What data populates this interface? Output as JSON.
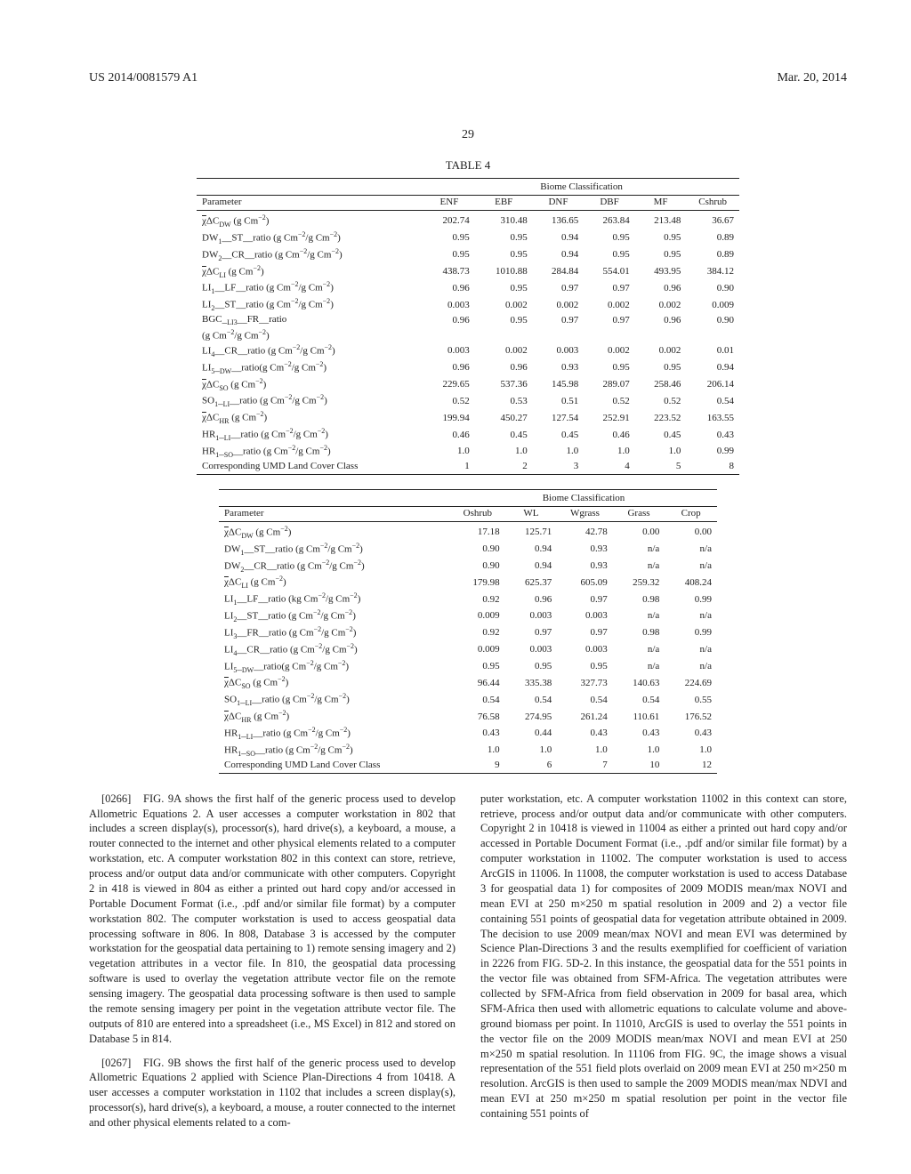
{
  "header": {
    "left": "US 2014/0081579 A1",
    "right": "Mar. 20, 2014"
  },
  "page_number": "29",
  "table_caption": "TABLE 4",
  "table1": {
    "group_header": "Biome Classification",
    "param_header": "Parameter",
    "columns": [
      "ENF",
      "EBF",
      "DNF",
      "DBF",
      "MF",
      "Cshrub"
    ],
    "rows": [
      {
        "param": "χ̄ΔC_DW (g Cm⁻²)",
        "vals": [
          "202.74",
          "310.48",
          "136.65",
          "263.84",
          "213.48",
          "36.67"
        ]
      },
      {
        "param": "DW₁__ST__ratio (g Cm⁻²/g Cm⁻²)",
        "vals": [
          "0.95",
          "0.95",
          "0.94",
          "0.95",
          "0.95",
          "0.89"
        ]
      },
      {
        "param": "DW₂__CR__ratio (g Cm⁻²/g Cm⁻²)",
        "vals": [
          "0.95",
          "0.95",
          "0.94",
          "0.95",
          "0.95",
          "0.89"
        ]
      },
      {
        "param": "χ̄ΔC_LI (g Cm⁻²)",
        "vals": [
          "438.73",
          "1010.88",
          "284.84",
          "554.01",
          "493.95",
          "384.12"
        ]
      },
      {
        "param": "LI₁__LF__ratio (g Cm⁻²/g Cm⁻²)",
        "vals": [
          "0.96",
          "0.95",
          "0.97",
          "0.97",
          "0.96",
          "0.90"
        ]
      },
      {
        "param": "LI₂__ST__ratio (g Cm⁻²/g Cm⁻²)",
        "vals": [
          "0.003",
          "0.002",
          "0.002",
          "0.002",
          "0.002",
          "0.009"
        ]
      },
      {
        "param": "BGC__LI₃__FR__ratio",
        "vals": [
          "0.96",
          "0.95",
          "0.97",
          "0.97",
          "0.96",
          "0.90"
        ]
      },
      {
        "param": "(g Cm⁻²/g Cm⁻²)",
        "vals": [
          "",
          "",
          "",
          "",
          "",
          ""
        ]
      },
      {
        "param": "LI₄__CR__ratio (g Cm⁻²/g Cm⁻²)",
        "vals": [
          "0.003",
          "0.002",
          "0.003",
          "0.002",
          "0.002",
          "0.01"
        ]
      },
      {
        "param": "LI₅__DW__ratio(g Cm⁻²/g Cm⁻²)",
        "vals": [
          "0.96",
          "0.96",
          "0.93",
          "0.95",
          "0.95",
          "0.94"
        ]
      },
      {
        "param": "χ̄ΔC_SO (g Cm⁻²)",
        "vals": [
          "229.65",
          "537.36",
          "145.98",
          "289.07",
          "258.46",
          "206.14"
        ]
      },
      {
        "param": "SO₁__LI__ratio (g Cm⁻²/g Cm⁻²)",
        "vals": [
          "0.52",
          "0.53",
          "0.51",
          "0.52",
          "0.52",
          "0.54"
        ]
      },
      {
        "param": "χ̄ΔC_HR (g Cm⁻²)",
        "vals": [
          "199.94",
          "450.27",
          "127.54",
          "252.91",
          "223.52",
          "163.55"
        ]
      },
      {
        "param": "HR₁__LI__ratio (g Cm⁻²/g Cm⁻²)",
        "vals": [
          "0.46",
          "0.45",
          "0.45",
          "0.46",
          "0.45",
          "0.43"
        ]
      },
      {
        "param": "HR₁__SO__ratio (g Cm⁻²/g Cm⁻²)",
        "vals": [
          "1.0",
          "1.0",
          "1.0",
          "1.0",
          "1.0",
          "0.99"
        ]
      },
      {
        "param": "Corresponding UMD Land Cover Class",
        "vals": [
          "1",
          "2",
          "3",
          "4",
          "5",
          "8"
        ]
      }
    ]
  },
  "table2": {
    "group_header": "Biome Classification",
    "param_header": "Parameter",
    "columns": [
      "Oshrub",
      "WL",
      "Wgrass",
      "Grass",
      "Crop"
    ],
    "rows": [
      {
        "param": "χ̄ΔC_DW (g Cm⁻²)",
        "vals": [
          "17.18",
          "125.71",
          "42.78",
          "0.00",
          "0.00"
        ]
      },
      {
        "param": "DW₁__ST__ratio (g Cm⁻²/g Cm⁻²)",
        "vals": [
          "0.90",
          "0.94",
          "0.93",
          "n/a",
          "n/a"
        ]
      },
      {
        "param": "DW₂__CR__ratio (g Cm⁻²/g Cm⁻²)",
        "vals": [
          "0.90",
          "0.94",
          "0.93",
          "n/a",
          "n/a"
        ]
      },
      {
        "param": "χ̄ΔC_LI (g Cm⁻²)",
        "vals": [
          "179.98",
          "625.37",
          "605.09",
          "259.32",
          "408.24"
        ]
      },
      {
        "param": "LI₁__LF__ratio (kg Cm⁻²/g Cm⁻²)",
        "vals": [
          "0.92",
          "0.96",
          "0.97",
          "0.98",
          "0.99"
        ]
      },
      {
        "param": "LI₂__ST__ratio (g Cm⁻²/g Cm⁻²)",
        "vals": [
          "0.009",
          "0.003",
          "0.003",
          "n/a",
          "n/a"
        ]
      },
      {
        "param": "LI₃__FR__ratio (g Cm⁻²/g Cm⁻²)",
        "vals": [
          "0.92",
          "0.97",
          "0.97",
          "0.98",
          "0.99"
        ]
      },
      {
        "param": "LI₄__CR__ratio (g Cm⁻²/g Cm⁻²)",
        "vals": [
          "0.009",
          "0.003",
          "0.003",
          "n/a",
          "n/a"
        ]
      },
      {
        "param": "LI₅__DW__ratio(g Cm⁻²/g Cm⁻²)",
        "vals": [
          "0.95",
          "0.95",
          "0.95",
          "n/a",
          "n/a"
        ]
      },
      {
        "param": "χ̄ΔC_SO (g Cm⁻²)",
        "vals": [
          "96.44",
          "335.38",
          "327.73",
          "140.63",
          "224.69"
        ]
      },
      {
        "param": "SO₁__LI__ratio (g Cm⁻²/g Cm⁻²)",
        "vals": [
          "0.54",
          "0.54",
          "0.54",
          "0.54",
          "0.55"
        ]
      },
      {
        "param": "χ̄ΔC_HR (g Cm⁻²)",
        "vals": [
          "76.58",
          "274.95",
          "261.24",
          "110.61",
          "176.52"
        ]
      },
      {
        "param": "HR₁__LI__ratio (g Cm⁻²/g Cm⁻²)",
        "vals": [
          "0.43",
          "0.44",
          "0.43",
          "0.43",
          "0.43"
        ]
      },
      {
        "param": "HR₁__SO__ratio (g Cm⁻²/g Cm⁻²)",
        "vals": [
          "1.0",
          "1.0",
          "1.0",
          "1.0",
          "1.0"
        ]
      },
      {
        "param": "Corresponding UMD Land Cover Class",
        "vals": [
          "9",
          "6",
          "7",
          "10",
          "12"
        ]
      }
    ]
  },
  "paragraphs": {
    "p1_num": "[0266]",
    "p1": "FIG. 9A shows the first half of the generic process used to develop Allometric Equations 2. A user accesses a computer workstation in 802 that includes a screen display(s), processor(s), hard drive(s), a keyboard, a mouse, a router connected to the internet and other physical elements related to a computer workstation, etc. A computer workstation 802 in this context can store, retrieve, process and/or output data and/or communicate with other computers. Copyright 2 in 418 is viewed in 804 as either a printed out hard copy and/or accessed in Portable Document Format (i.e., .pdf and/or similar file format) by a computer workstation 802. The computer workstation is used to access geospatial data processing software in 806. In 808, Database 3 is accessed by the computer workstation for the geospatial data pertaining to 1) remote sensing imagery and 2) vegetation attributes in a vector file. In 810, the geospatial data processing software is used to overlay the vegetation attribute vector file on the remote sensing imagery. The geospatial data processing software is then used to sample the remote sensing imagery per point in the vegetation attribute vector file. The outputs of 810 are entered into a spreadsheet (i.e., MS Excel) in 812 and stored on Database 5 in 814.",
    "p2_num": "[0267]",
    "p2": "FIG. 9B shows the first half of the generic process used to develop Allometric Equations 2 applied with Science Plan-Directions 4 from 10418. A user accesses a computer workstation in 1102 that includes a screen display(s), processor(s), hard drive(s), a keyboard, a mouse, a router connected to the internet and other physical elements related to a com-",
    "p3": "puter workstation, etc. A computer workstation 11002 in this context can store, retrieve, process and/or output data and/or communicate with other computers. Copyright 2 in 10418 is viewed in 11004 as either a printed out hard copy and/or accessed in Portable Document Format (i.e., .pdf and/or similar file format) by a computer workstation in 11002. The computer workstation is used to access ArcGIS in 11006. In 11008, the computer workstation is used to access Database 3 for geospatial data 1) for composites of 2009 MODIS mean/max NOVI and mean EVI at 250 m×250 m spatial resolution in 2009 and 2) a vector file containing 551 points of geospatial data for vegetation attribute obtained in 2009. The decision to use 2009 mean/max NOVI and mean EVI was determined by Science Plan-Directions 3 and the results exemplified for coefficient of variation in 2226 from FIG. 5D-2. In this instance, the geospatial data for the 551 points in the vector file was obtained from SFM-Africa. The vegetation attributes were collected by SFM-Africa from field observation in 2009 for basal area, which SFM-Africa then used with allometric equations to calculate volume and above-ground biomass per point. In 11010, ArcGIS is used to overlay the 551 points in the vector file on the 2009 MODIS mean/max NOVI and mean EVI at 250 m×250 m spatial resolution. In 11106 from FIG. 9C, the image shows a visual representation of the 551 field plots overlaid on 2009 mean EVI at 250 m×250 m resolution. ArcGIS is then used to sample the 2009 MODIS mean/max NDVI and mean EVI at 250 m×250 m spatial resolution per point in the vector file containing 551 points of"
  }
}
